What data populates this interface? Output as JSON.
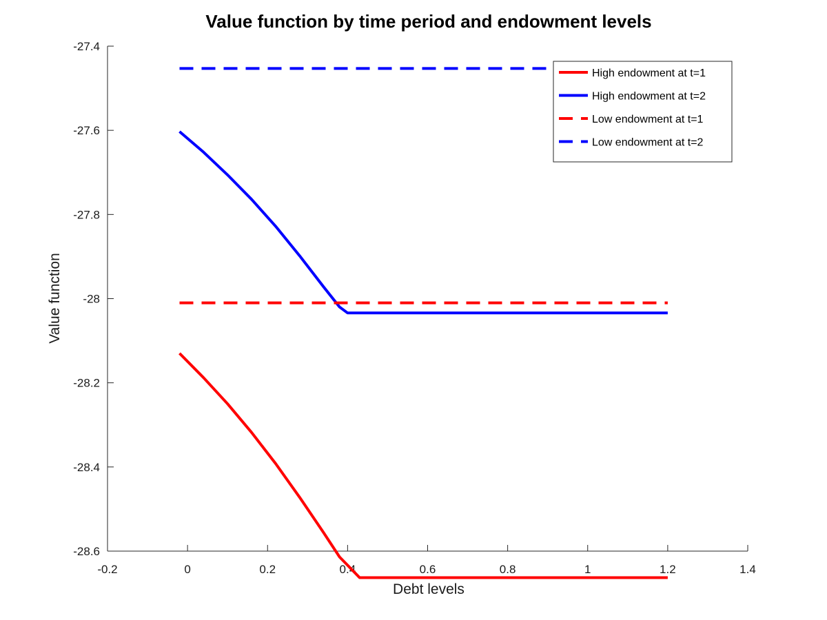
{
  "chart_data": {
    "type": "line",
    "title": "Value function by time period and endowment levels",
    "xlabel": "Debt levels",
    "ylabel": "Value function",
    "xlim": [
      -0.2,
      1.4
    ],
    "ylim": [
      -28.6,
      -27.4
    ],
    "xticks": [
      -0.2,
      0,
      0.2,
      0.4,
      0.6,
      0.8,
      1,
      1.2,
      1.4
    ],
    "xtick_labels": [
      "-0.2",
      "0",
      "0.2",
      "0.4",
      "0.6",
      "0.8",
      "1",
      "1.2",
      "1.4"
    ],
    "yticks": [
      -28.6,
      -28.4,
      -28.2,
      -28,
      -27.8,
      -27.6,
      -27.4
    ],
    "ytick_labels": [
      "-28.6",
      "-28.4",
      "-28.2",
      "-28",
      "-27.8",
      "-27.6",
      "-27.4"
    ],
    "grid": false,
    "legend_position": "top-right",
    "series": [
      {
        "name": "High endowment at t=1",
        "color": "#ff0000",
        "dash": "solid",
        "x": [
          -0.02,
          0.04,
          0.1,
          0.16,
          0.22,
          0.28,
          0.34,
          0.38,
          0.43,
          0.6,
          0.8,
          1.0,
          1.2
        ],
        "y": [
          -28.13,
          -28.188,
          -28.25,
          -28.318,
          -28.392,
          -28.472,
          -28.556,
          -28.614,
          -28.663,
          -28.663,
          -28.663,
          -28.663,
          -28.663
        ]
      },
      {
        "name": "High endowment at t=2",
        "color": "#0000ff",
        "dash": "solid",
        "x": [
          -0.02,
          0.04,
          0.1,
          0.16,
          0.22,
          0.28,
          0.34,
          0.38,
          0.4,
          0.6,
          0.8,
          1.0,
          1.2
        ],
        "y": [
          -27.603,
          -27.652,
          -27.706,
          -27.764,
          -27.828,
          -27.898,
          -27.972,
          -28.02,
          -28.034,
          -28.034,
          -28.034,
          -28.034,
          -28.034
        ]
      },
      {
        "name": "Low endowment at t=1",
        "color": "#ff0000",
        "dash": "dashed",
        "x": [
          -0.02,
          1.2
        ],
        "y": [
          -28.01,
          -28.01
        ]
      },
      {
        "name": "Low endowment at t=2",
        "color": "#0000ff",
        "dash": "dashed",
        "x": [
          -0.02,
          1.2
        ],
        "y": [
          -27.453,
          -27.453
        ]
      }
    ]
  }
}
